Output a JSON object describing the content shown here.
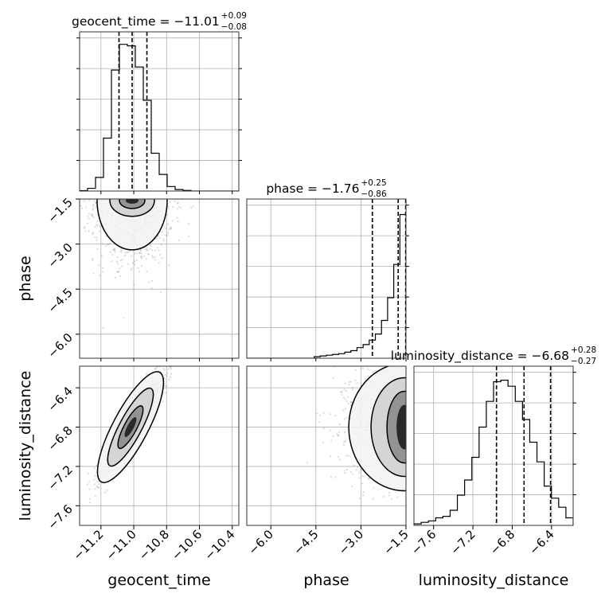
{
  "chart_data": {
    "type": "corner",
    "parameters": [
      "geocent_time",
      "phase",
      "luminosity_distance"
    ],
    "grid": true,
    "diagonal": [
      {
        "parameter": "geocent_time",
        "title_main": "geocent_time = −11.01",
        "title_plus": "+0.09",
        "title_minus": "−0.08",
        "range": [
          -11.33,
          -10.36
        ],
        "quantiles": [
          -11.09,
          -11.01,
          -10.92
        ],
        "hist": [
          0.003,
          0.018,
          0.09,
          0.35,
          0.8,
          0.97,
          0.96,
          0.82,
          0.6,
          0.25,
          0.11,
          0.03,
          0.01,
          0.004,
          0,
          0,
          0,
          0,
          0,
          0
        ]
      },
      {
        "parameter": "phase",
        "title_main": "phase = −1.76",
        "title_plus": "+0.25",
        "title_minus": "−0.86",
        "range": [
          -6.8,
          -1.5
        ],
        "quantiles": [
          -2.62,
          -1.76,
          -1.51
        ],
        "hist": [
          0,
          0,
          0,
          0,
          0,
          0,
          0,
          0,
          0,
          0,
          0,
          0.01,
          0.015,
          0.02,
          0.025,
          0.03,
          0.04,
          0.05,
          0.07,
          0.09,
          0.12,
          0.16,
          0.25,
          0.4,
          0.62,
          0.95
        ]
      },
      {
        "parameter": "luminosity_distance",
        "title_main": "luminosity_distance = −6.68",
        "title_plus": "+0.28",
        "title_minus": "−0.27",
        "range": [
          -7.8,
          -6.18
        ],
        "quantiles": [
          -6.96,
          -6.68,
          -6.41
        ],
        "hist": [
          0.01,
          0.02,
          0.03,
          0.05,
          0.06,
          0.1,
          0.2,
          0.3,
          0.45,
          0.65,
          0.82,
          0.95,
          0.96,
          0.92,
          0.82,
          0.7,
          0.55,
          0.42,
          0.26,
          0.18,
          0.12,
          0.05
        ]
      }
    ],
    "ticks": {
      "geocent_time": [
        -11.2,
        -11.0,
        -10.8,
        -10.6,
        -10.4
      ],
      "phase": [
        -6.0,
        -4.5,
        -3.0,
        -1.5
      ],
      "luminosity_distance": [
        -7.6,
        -7.2,
        -6.8,
        -6.4
      ]
    },
    "tick_labels": {
      "geocent_time": [
        "−11.2",
        "−11.0",
        "−10.8",
        "−10.6",
        "−10.4"
      ],
      "phase": [
        "−6.0",
        "−4.5",
        "−3.0",
        "−1.5"
      ],
      "luminosity_distance": [
        "−7.6",
        "−7.2",
        "−6.8",
        "−6.4"
      ]
    },
    "xlabels": [
      "geocent_time",
      "phase",
      "luminosity_distance"
    ],
    "ylabels": [
      "phase",
      "luminosity_distance"
    ],
    "pair_plots": [
      {
        "x": "geocent_time",
        "y": "phase",
        "center": [
          -11.0,
          -1.6
        ],
        "spread": [
          0.12,
          1.0
        ],
        "core": [
          -11.01,
          -1.55
        ]
      },
      {
        "x": "geocent_time",
        "y": "luminosity_distance",
        "center": [
          -11.0,
          -6.75
        ],
        "spread": [
          0.09,
          0.28
        ],
        "core": [
          -11.02,
          -6.8
        ]
      },
      {
        "x": "phase",
        "y": "luminosity_distance",
        "center": [
          -1.9,
          -6.75
        ],
        "spread": [
          0.8,
          0.28
        ],
        "core": [
          -1.55,
          -6.8
        ]
      }
    ]
  }
}
